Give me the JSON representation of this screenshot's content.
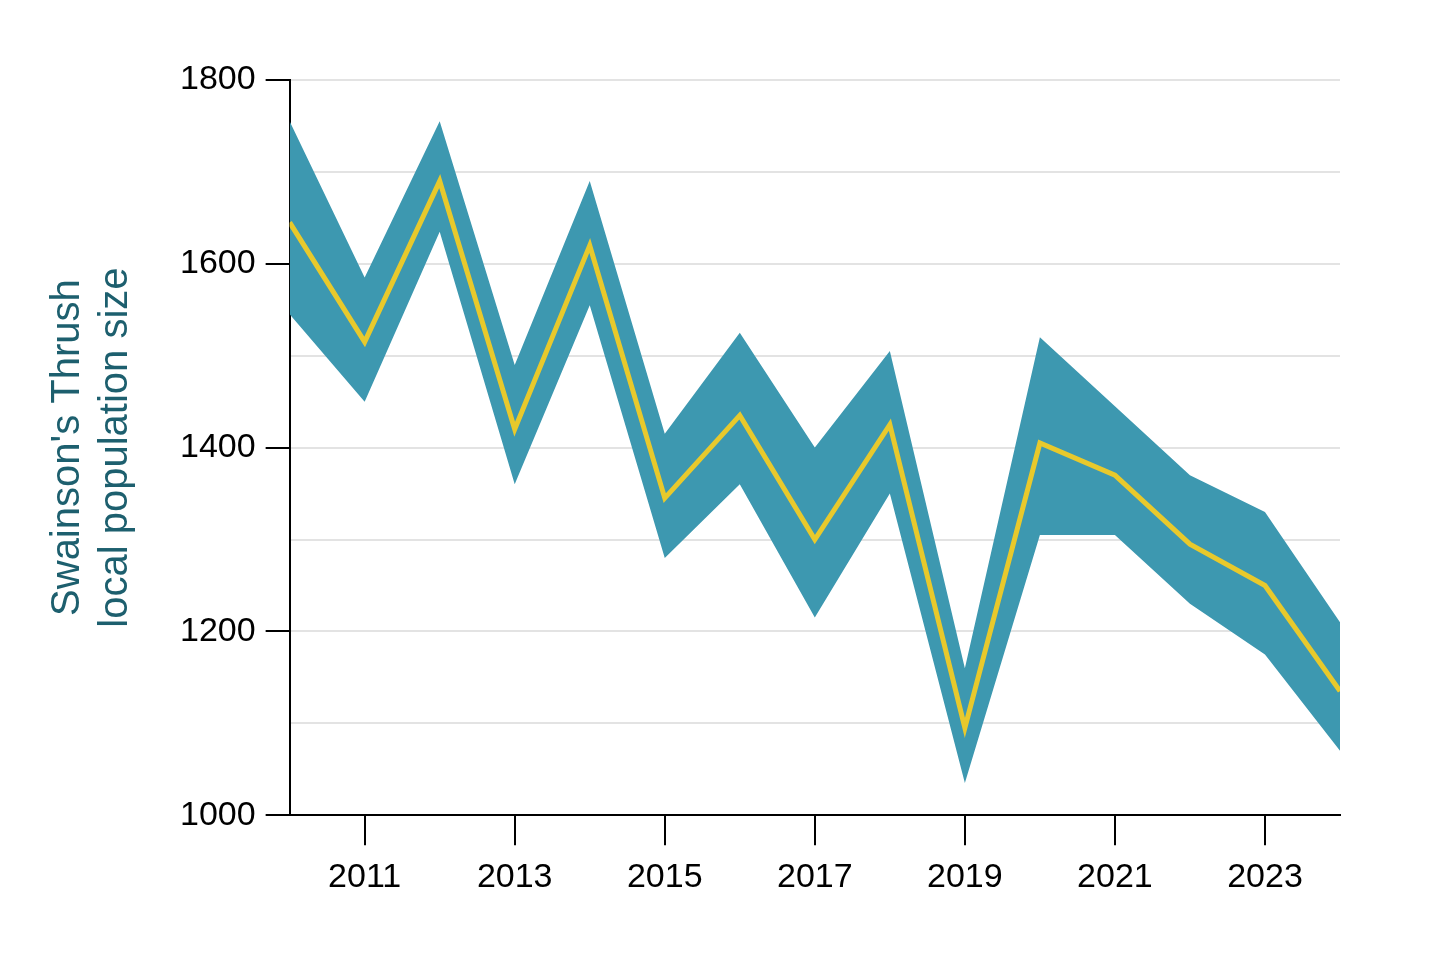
{
  "chart_data": {
    "type": "line",
    "ylabel": [
      "Swainson's Thrush",
      "local population size"
    ],
    "x": [
      2010,
      2011,
      2012,
      2013,
      2014,
      2015,
      2016,
      2017,
      2018,
      2019,
      2020,
      2021,
      2022,
      2023,
      2024
    ],
    "series": [
      {
        "type": "area",
        "color": "#3d98b0",
        "lower": [
          1545,
          1450,
          1635,
          1360,
          1555,
          1280,
          1360,
          1215,
          1350,
          1035,
          1305,
          1305,
          1230,
          1175,
          1070
        ],
        "upper": [
          1755,
          1585,
          1755,
          1490,
          1690,
          1415,
          1525,
          1400,
          1505,
          1160,
          1520,
          1445,
          1370,
          1330,
          1210
        ]
      },
      {
        "type": "line",
        "color": "#e8c92c",
        "values": [
          1645,
          1515,
          1690,
          1420,
          1620,
          1345,
          1435,
          1300,
          1425,
          1095,
          1405,
          1370,
          1295,
          1250,
          1135
        ]
      }
    ],
    "xlim": [
      2010,
      2024
    ],
    "xticks": [
      2011,
      2013,
      2015,
      2017,
      2019,
      2021,
      2023
    ],
    "ylim": [
      1000,
      1800
    ],
    "yticks": [
      1000,
      1200,
      1400,
      1600,
      1800
    ],
    "grid": true
  }
}
